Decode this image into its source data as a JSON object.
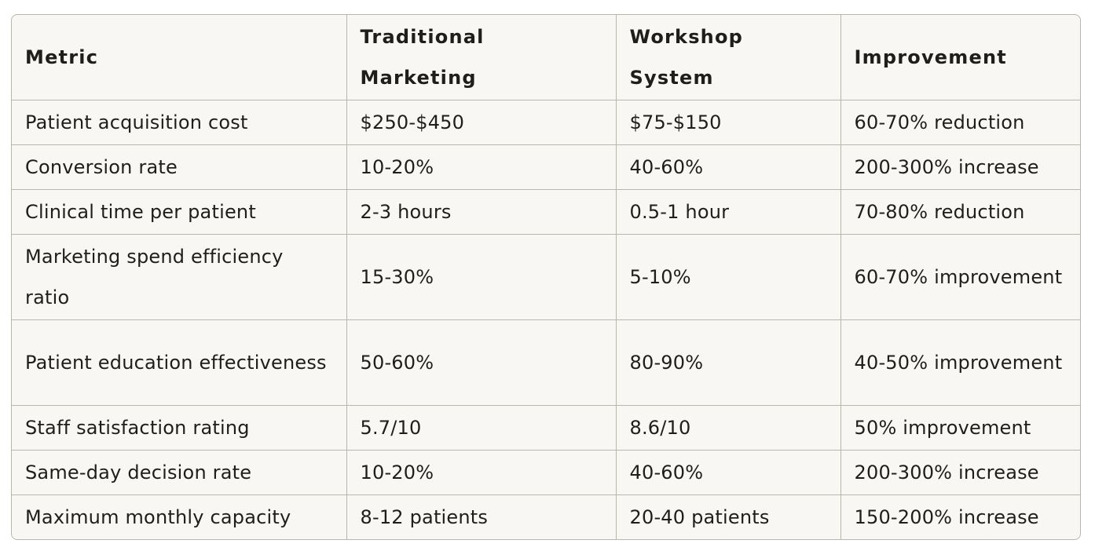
{
  "table": {
    "headers": [
      "Metric",
      "Traditional Marketing",
      "Workshop System",
      "Improvement"
    ],
    "rows": [
      [
        "Patient acquisition cost",
        "$250-$450",
        "$75-$150",
        "60-70% reduction"
      ],
      [
        "Conversion rate",
        "10-20%",
        "40-60%",
        "200-300% increase"
      ],
      [
        "Clinical time per patient",
        "2-3 hours",
        "0.5-1 hour",
        "70-80% reduction"
      ],
      [
        "Marketing spend efficiency ratio",
        "15-30%",
        "5-10%",
        "60-70% improvement"
      ],
      [
        "Patient education effectiveness",
        "50-60%",
        "80-90%",
        "40-50% improvement"
      ],
      [
        "Staff satisfaction rating",
        "5.7/10",
        "8.6/10",
        "50% improvement"
      ],
      [
        "Same-day decision rate",
        "10-20%",
        "40-60%",
        "200-300% increase"
      ],
      [
        "Maximum monthly capacity",
        "8-12 patients",
        "20-40 patients",
        "150-200% increase"
      ]
    ]
  }
}
